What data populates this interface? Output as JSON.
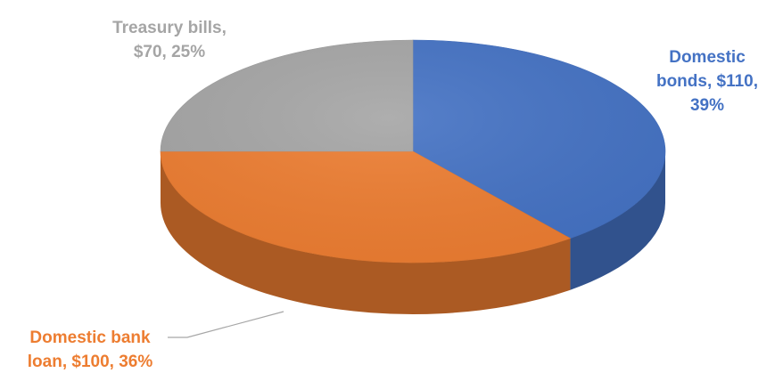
{
  "chart_data": {
    "type": "pie",
    "style": "3d",
    "slices": [
      {
        "name": "Domestic bonds",
        "value": 110,
        "percent": 39,
        "color": "#4472c4",
        "label_lines": [
          "Domestic",
          "bonds, $110,",
          "39%"
        ]
      },
      {
        "name": "Domestic bank loan",
        "value": 100,
        "percent": 36,
        "color": "#ed7d31",
        "label_lines": [
          "Domestic bank",
          "loan, $100, 36%"
        ]
      },
      {
        "name": "Treasury bills",
        "value": 70,
        "percent": 25,
        "color": "#a5a5a5",
        "label_lines": [
          "Treasury bills,",
          "$70, 25%"
        ]
      }
    ],
    "start_angle_deg": -90,
    "direction": "clockwise",
    "legend": "none"
  }
}
